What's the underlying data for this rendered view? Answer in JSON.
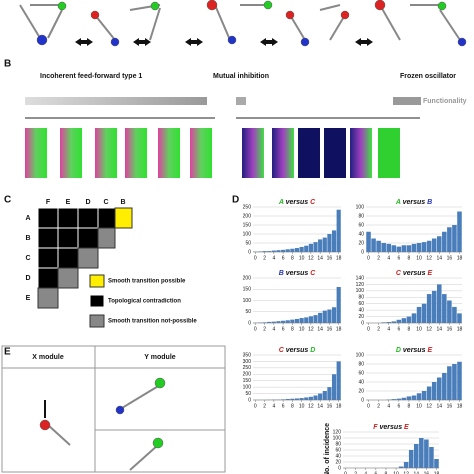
{
  "panel_b": {
    "label": "B",
    "left_title": "Incoherent feed-forward type 1",
    "middle_title": "Mutual inhibition",
    "right_title": "Frozen oscillator",
    "axis_label": "Functionality"
  },
  "panel_c": {
    "label": "C",
    "columns": [
      "F",
      "E",
      "D",
      "C",
      "B"
    ],
    "rows": [
      "A",
      "B",
      "C",
      "D",
      "E"
    ],
    "legend": [
      "Smooth transition possible",
      "Topological contradiction",
      "Smooth transition not-possible"
    ]
  },
  "panel_d": {
    "label": "D",
    "y_axis_label": "No. of incidence"
  },
  "histograms": [
    {
      "title": {
        "left": "A",
        "mid": "versus",
        "right": "C"
      },
      "left_color": "#22bb22",
      "right_color": "#cc2222",
      "color": "#4a7ebb",
      "x": [
        0,
        1,
        2,
        3,
        4,
        5,
        6,
        7,
        8,
        9,
        10,
        11,
        12,
        13,
        14,
        15,
        16,
        17,
        18
      ],
      "values": [
        2,
        3,
        5,
        5,
        8,
        10,
        12,
        15,
        18,
        22,
        28,
        35,
        45,
        55,
        70,
        80,
        100,
        120,
        235
      ],
      "xlim": [
        -0.5,
        18.5
      ],
      "xticks": [
        0,
        2,
        4,
        6,
        8,
        10,
        12,
        14,
        16,
        18
      ],
      "ylim": [
        0,
        250
      ],
      "yticks": [
        0,
        50,
        100,
        150,
        200,
        250
      ]
    },
    {
      "title": {
        "left": "A",
        "mid": "versus",
        "right": "B"
      },
      "left_color": "#22bb22",
      "right_color": "#2233bb",
      "color": "#4a7ebb",
      "x": [
        0,
        1,
        2,
        3,
        4,
        5,
        6,
        7,
        8,
        9,
        10,
        11,
        12,
        13,
        14,
        15,
        16,
        17,
        18
      ],
      "values": [
        45,
        30,
        25,
        20,
        18,
        15,
        12,
        15,
        15,
        18,
        20,
        22,
        25,
        30,
        35,
        45,
        55,
        60,
        90
      ],
      "xlim": [
        -0.5,
        18.5
      ],
      "xticks": [
        0,
        2,
        4,
        6,
        8,
        10,
        12,
        14,
        16,
        18
      ],
      "ylim": [
        0,
        100
      ],
      "yticks": [
        0,
        20,
        40,
        60,
        80,
        100
      ]
    },
    {
      "title": {
        "left": "B",
        "mid": "versus",
        "right": "C"
      },
      "left_color": "#2233bb",
      "right_color": "#cc2222",
      "color": "#4a7ebb",
      "x": [
        0,
        1,
        2,
        3,
        4,
        5,
        6,
        7,
        8,
        9,
        10,
        11,
        12,
        13,
        14,
        15,
        16,
        17,
        18
      ],
      "values": [
        1,
        2,
        3,
        5,
        6,
        8,
        10,
        12,
        15,
        18,
        22,
        25,
        30,
        35,
        45,
        55,
        60,
        70,
        160
      ],
      "xlim": [
        -0.5,
        18.5
      ],
      "xticks": [
        0,
        2,
        4,
        6,
        8,
        10,
        12,
        14,
        16,
        18
      ],
      "ylim": [
        0,
        200
      ],
      "yticks": [
        0,
        50,
        100,
        150,
        200
      ]
    },
    {
      "title": {
        "left": "C",
        "mid": "versus",
        "right": "E"
      },
      "left_color": "#cc2222",
      "right_color": "#cc2222",
      "color": "#4a7ebb",
      "x": [
        0,
        1,
        2,
        3,
        4,
        5,
        6,
        7,
        8,
        9,
        10,
        11,
        12,
        13,
        14,
        15,
        16,
        17,
        18
      ],
      "values": [
        0,
        0,
        0,
        2,
        3,
        5,
        10,
        15,
        20,
        30,
        50,
        60,
        90,
        100,
        120,
        90,
        70,
        50,
        30
      ],
      "xlim": [
        -0.5,
        18.5
      ],
      "xticks": [
        0,
        2,
        4,
        6,
        8,
        10,
        12,
        14,
        16,
        18
      ],
      "ylim": [
        0,
        140
      ],
      "yticks": [
        0,
        20,
        40,
        60,
        80,
        100,
        120,
        140
      ]
    },
    {
      "title": {
        "left": "C",
        "mid": "versus",
        "right": "D"
      },
      "left_color": "#cc2222",
      "right_color": "#22bb22",
      "color": "#4a7ebb",
      "x": [
        0,
        1,
        2,
        3,
        4,
        5,
        6,
        7,
        8,
        9,
        10,
        11,
        12,
        13,
        14,
        15,
        16,
        17,
        18
      ],
      "values": [
        1,
        1,
        1,
        2,
        3,
        3,
        5,
        8,
        10,
        12,
        15,
        20,
        25,
        35,
        50,
        70,
        100,
        200,
        300
      ],
      "xlim": [
        -0.5,
        18.5
      ],
      "xticks": [
        0,
        2,
        4,
        6,
        8,
        10,
        12,
        14,
        16,
        18
      ],
      "ylim": [
        0,
        350
      ],
      "yticks": [
        0,
        50,
        100,
        150,
        200,
        250,
        300,
        350
      ]
    },
    {
      "title": {
        "left": "D",
        "mid": "versus",
        "right": "E"
      },
      "left_color": "#22bb22",
      "right_color": "#cc2222",
      "color": "#4a7ebb",
      "x": [
        0,
        1,
        2,
        3,
        4,
        5,
        6,
        7,
        8,
        9,
        10,
        11,
        12,
        13,
        14,
        15,
        16,
        17,
        18
      ],
      "values": [
        0,
        0,
        0,
        0,
        1,
        2,
        3,
        5,
        8,
        10,
        15,
        20,
        30,
        40,
        50,
        60,
        75,
        80,
        85
      ],
      "xlim": [
        -0.5,
        18.5
      ],
      "xticks": [
        0,
        2,
        4,
        6,
        8,
        10,
        12,
        14,
        16,
        18
      ],
      "ylim": [
        0,
        100
      ],
      "yticks": [
        0,
        20,
        40,
        60,
        80,
        100
      ]
    },
    {
      "title": {
        "left": "F",
        "mid": "versus",
        "right": "E"
      },
      "left_color": "#cc2222",
      "right_color": "#cc2222",
      "color": "#4a7ebb",
      "x": [
        0,
        1,
        2,
        3,
        4,
        5,
        6,
        7,
        8,
        9,
        10,
        11,
        12,
        13,
        14,
        15,
        16,
        17,
        18
      ],
      "values": [
        0,
        0,
        0,
        0,
        0,
        0,
        0,
        0,
        0,
        0,
        0,
        5,
        20,
        60,
        80,
        100,
        95,
        70,
        30
      ],
      "xlim": [
        -0.5,
        18.5
      ],
      "xticks": [
        0,
        2,
        4,
        6,
        8,
        10,
        12,
        14,
        16,
        18
      ],
      "ylim": [
        0,
        120
      ],
      "yticks": [
        0,
        20,
        40,
        60,
        80,
        100,
        120
      ]
    }
  ],
  "panel_e": {
    "label": "E",
    "x_module": "X module",
    "y_module": "Y module"
  }
}
